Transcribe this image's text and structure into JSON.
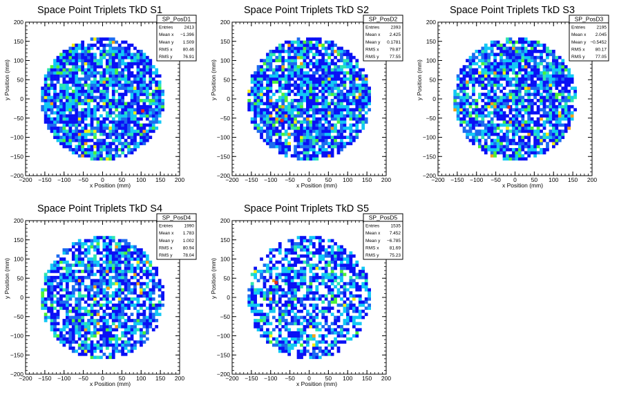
{
  "palette": [
    "#0a10f5",
    "#1c6bf0",
    "#12c8f5",
    "#2ee6b0",
    "#4cf03c",
    "#f2ee12",
    "#f0a21a",
    "#e8281e"
  ],
  "chart_data": [
    {
      "type": "heatmap",
      "title": "Space Point Triplets TkD S1",
      "xlabel": "x Position (mm)",
      "ylabel": "y Position (mm)",
      "xlim": [
        -200,
        200
      ],
      "ylim": [
        -200,
        200
      ],
      "xticks": [
        "−200",
        "−150",
        "−100",
        "−50",
        "0",
        "50",
        "100",
        "150",
        "200"
      ],
      "yticks": [
        "−200",
        "−150",
        "−100",
        "−50",
        "0",
        "50",
        "100",
        "150",
        "200"
      ],
      "stats_box": {
        "name": "SP_PosD1",
        "rows": [
          [
            "Entries",
            "2413"
          ],
          [
            "Mean x",
            "−1.396"
          ],
          [
            "Mean y",
            "1.509"
          ],
          [
            "RMS x",
            "80.46"
          ],
          [
            "RMS y",
            "76.91"
          ]
        ]
      },
      "bins": {
        "size_mm": 8,
        "radius_mm": 160,
        "occupancy": 0.85,
        "seed": 11,
        "hot_level": 7,
        "hot_x": 100,
        "hot_y": -35
      }
    },
    {
      "type": "heatmap",
      "title": "Space Point Triplets TkD S2",
      "xlabel": "x Position (mm)",
      "ylabel": "y Position (mm)",
      "xlim": [
        -200,
        200
      ],
      "ylim": [
        -200,
        200
      ],
      "xticks": [
        "−200",
        "−150",
        "−100",
        "−50",
        "0",
        "50",
        "100",
        "150",
        "200"
      ],
      "yticks": [
        "−200",
        "−150",
        "−100",
        "−50",
        "0",
        "50",
        "100",
        "150",
        "200"
      ],
      "stats_box": {
        "name": "SP_PosD2",
        "rows": [
          [
            "Entries",
            "2393"
          ],
          [
            "Mean x",
            "2.425"
          ],
          [
            "Mean y",
            "0.1781"
          ],
          [
            "RMS x",
            "79.87"
          ],
          [
            "RMS y",
            "77.55"
          ]
        ]
      },
      "bins": {
        "size_mm": 8,
        "radius_mm": 160,
        "occupancy": 0.82,
        "seed": 23,
        "hot_level": 7,
        "hot_x": -75,
        "hot_y": -60
      }
    },
    {
      "type": "heatmap",
      "title": "Space Point Triplets TkD S3",
      "xlabel": "x Position (mm)",
      "ylabel": "y Position (mm)",
      "xlim": [
        -200,
        200
      ],
      "ylim": [
        -200,
        200
      ],
      "xticks": [
        "−200",
        "−150",
        "−100",
        "−50",
        "0",
        "50",
        "100",
        "150",
        "200"
      ],
      "yticks": [
        "−200",
        "−150",
        "−100",
        "−50",
        "0",
        "50",
        "100",
        "150",
        "200"
      ],
      "stats_box": {
        "name": "SP_PosD3",
        "rows": [
          [
            "Entries",
            "2195"
          ],
          [
            "Mean x",
            "2.045"
          ],
          [
            "Mean y",
            "−0.5452"
          ],
          [
            "RMS x",
            "80.17"
          ],
          [
            "RMS y",
            "77.05"
          ]
        ]
      },
      "bins": {
        "size_mm": 8,
        "radius_mm": 160,
        "occupancy": 0.78,
        "seed": 37,
        "hot_level": 7,
        "hot_x": -20,
        "hot_y": -25
      }
    },
    {
      "type": "heatmap",
      "title": "Space Point Triplets TkD S4",
      "xlabel": "x Position (mm)",
      "ylabel": "y Position (mm)",
      "xlim": [
        -200,
        200
      ],
      "ylim": [
        -200,
        200
      ],
      "xticks": [
        "−200",
        "−150",
        "−100",
        "−50",
        "0",
        "50",
        "100",
        "150",
        "200"
      ],
      "yticks": [
        "−200",
        "−150",
        "−100",
        "−50",
        "0",
        "50",
        "100",
        "150",
        "200"
      ],
      "stats_box": {
        "name": "SP_PosD4",
        "rows": [
          [
            "Entries",
            "1990"
          ],
          [
            "Mean x",
            "1.783"
          ],
          [
            "Mean y",
            "1.002"
          ],
          [
            "RMS x",
            "80.94"
          ],
          [
            "RMS y",
            "78.04"
          ]
        ]
      },
      "bins": {
        "size_mm": 8,
        "radius_mm": 160,
        "occupancy": 0.74,
        "seed": 53,
        "hot_level": 6,
        "hot_x": 10,
        "hot_y": 20
      }
    },
    {
      "type": "heatmap",
      "title": "Space Point Triplets TkD S5",
      "xlabel": "x Position (mm)",
      "ylabel": "y Position (mm)",
      "xlim": [
        -200,
        200
      ],
      "ylim": [
        -200,
        200
      ],
      "xticks": [
        "−200",
        "−150",
        "−100",
        "−50",
        "0",
        "50",
        "100",
        "150",
        "200"
      ],
      "yticks": [
        "−200",
        "−150",
        "−100",
        "−50",
        "0",
        "50",
        "100",
        "150",
        "200"
      ],
      "stats_box": {
        "name": "SP_PosD5",
        "rows": [
          [
            "Entries",
            "1535"
          ],
          [
            "Mean x",
            "7.452"
          ],
          [
            "Mean y",
            "−6.785"
          ],
          [
            "RMS x",
            "81.69"
          ],
          [
            "RMS y",
            "75.23"
          ]
        ]
      },
      "bins": {
        "size_mm": 8,
        "radius_mm": 160,
        "occupancy": 0.62,
        "seed": 71,
        "hot_level": 7,
        "hot_x": -90,
        "hot_y": 35
      }
    }
  ]
}
